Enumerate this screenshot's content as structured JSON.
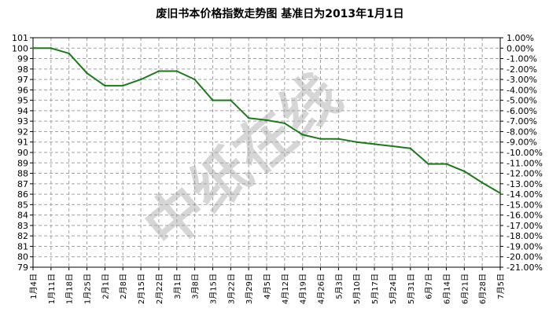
{
  "watermark_text": "中纸在线",
  "chart_data": {
    "type": "line",
    "title": "废旧书本价格指数走势图 基准日为2013年1月1日",
    "xlabel": "",
    "ylabel": "",
    "categories": [
      "1月4日",
      "1月11日",
      "1月18日",
      "1月25日",
      "2月1日",
      "2月8日",
      "2月15日",
      "2月22日",
      "3月1日",
      "3月8日",
      "3月15日",
      "3月22日",
      "3月29日",
      "4月5日",
      "4月12日",
      "4月19日",
      "4月26日",
      "5月3日",
      "5月10日",
      "5月17日",
      "5月24日",
      "5月31日",
      "6月7日",
      "6月14日",
      "6月21日",
      "6月28日",
      "7月5日"
    ],
    "series": [
      {
        "values": [
          100,
          100,
          99.5,
          97.6,
          96.4,
          96.4,
          97.0,
          97.8,
          97.8,
          97.0,
          95.0,
          95.0,
          93.3,
          93.1,
          92.8,
          91.7,
          91.3,
          91.3,
          91.0,
          90.8,
          90.6,
          90.4,
          88.9,
          88.9,
          88.2,
          87.1,
          86.1
        ],
        "color": "#1a7a1a"
      }
    ],
    "ylim": [
      79,
      101
    ],
    "y_ticks": [
      "101",
      "100",
      "99",
      "98",
      "97",
      "96",
      "95",
      "94",
      "93",
      "92",
      "91",
      "90",
      "89",
      "88",
      "87",
      "86",
      "85",
      "84",
      "83",
      "82",
      "81",
      "80",
      "79"
    ],
    "y2_ticks": [
      "1.00%",
      "0.00%",
      "-1.00%",
      "-2.00%",
      "-3.00%",
      "-4.00%",
      "-5.00%",
      "-6.00%",
      "-7.00%",
      "-8.00%",
      "-9.00%",
      "-10.00%",
      "-11.00%",
      "-12.00%",
      "-13.00%",
      "-14.00%",
      "-15.00%",
      "-16.00%",
      "-17.00%",
      "-18.00%",
      "-19.00%",
      "-20.00%",
      "-21.00%"
    ],
    "grid": true,
    "grid_color": "#a0a0a0",
    "axis_color": "#000000"
  }
}
